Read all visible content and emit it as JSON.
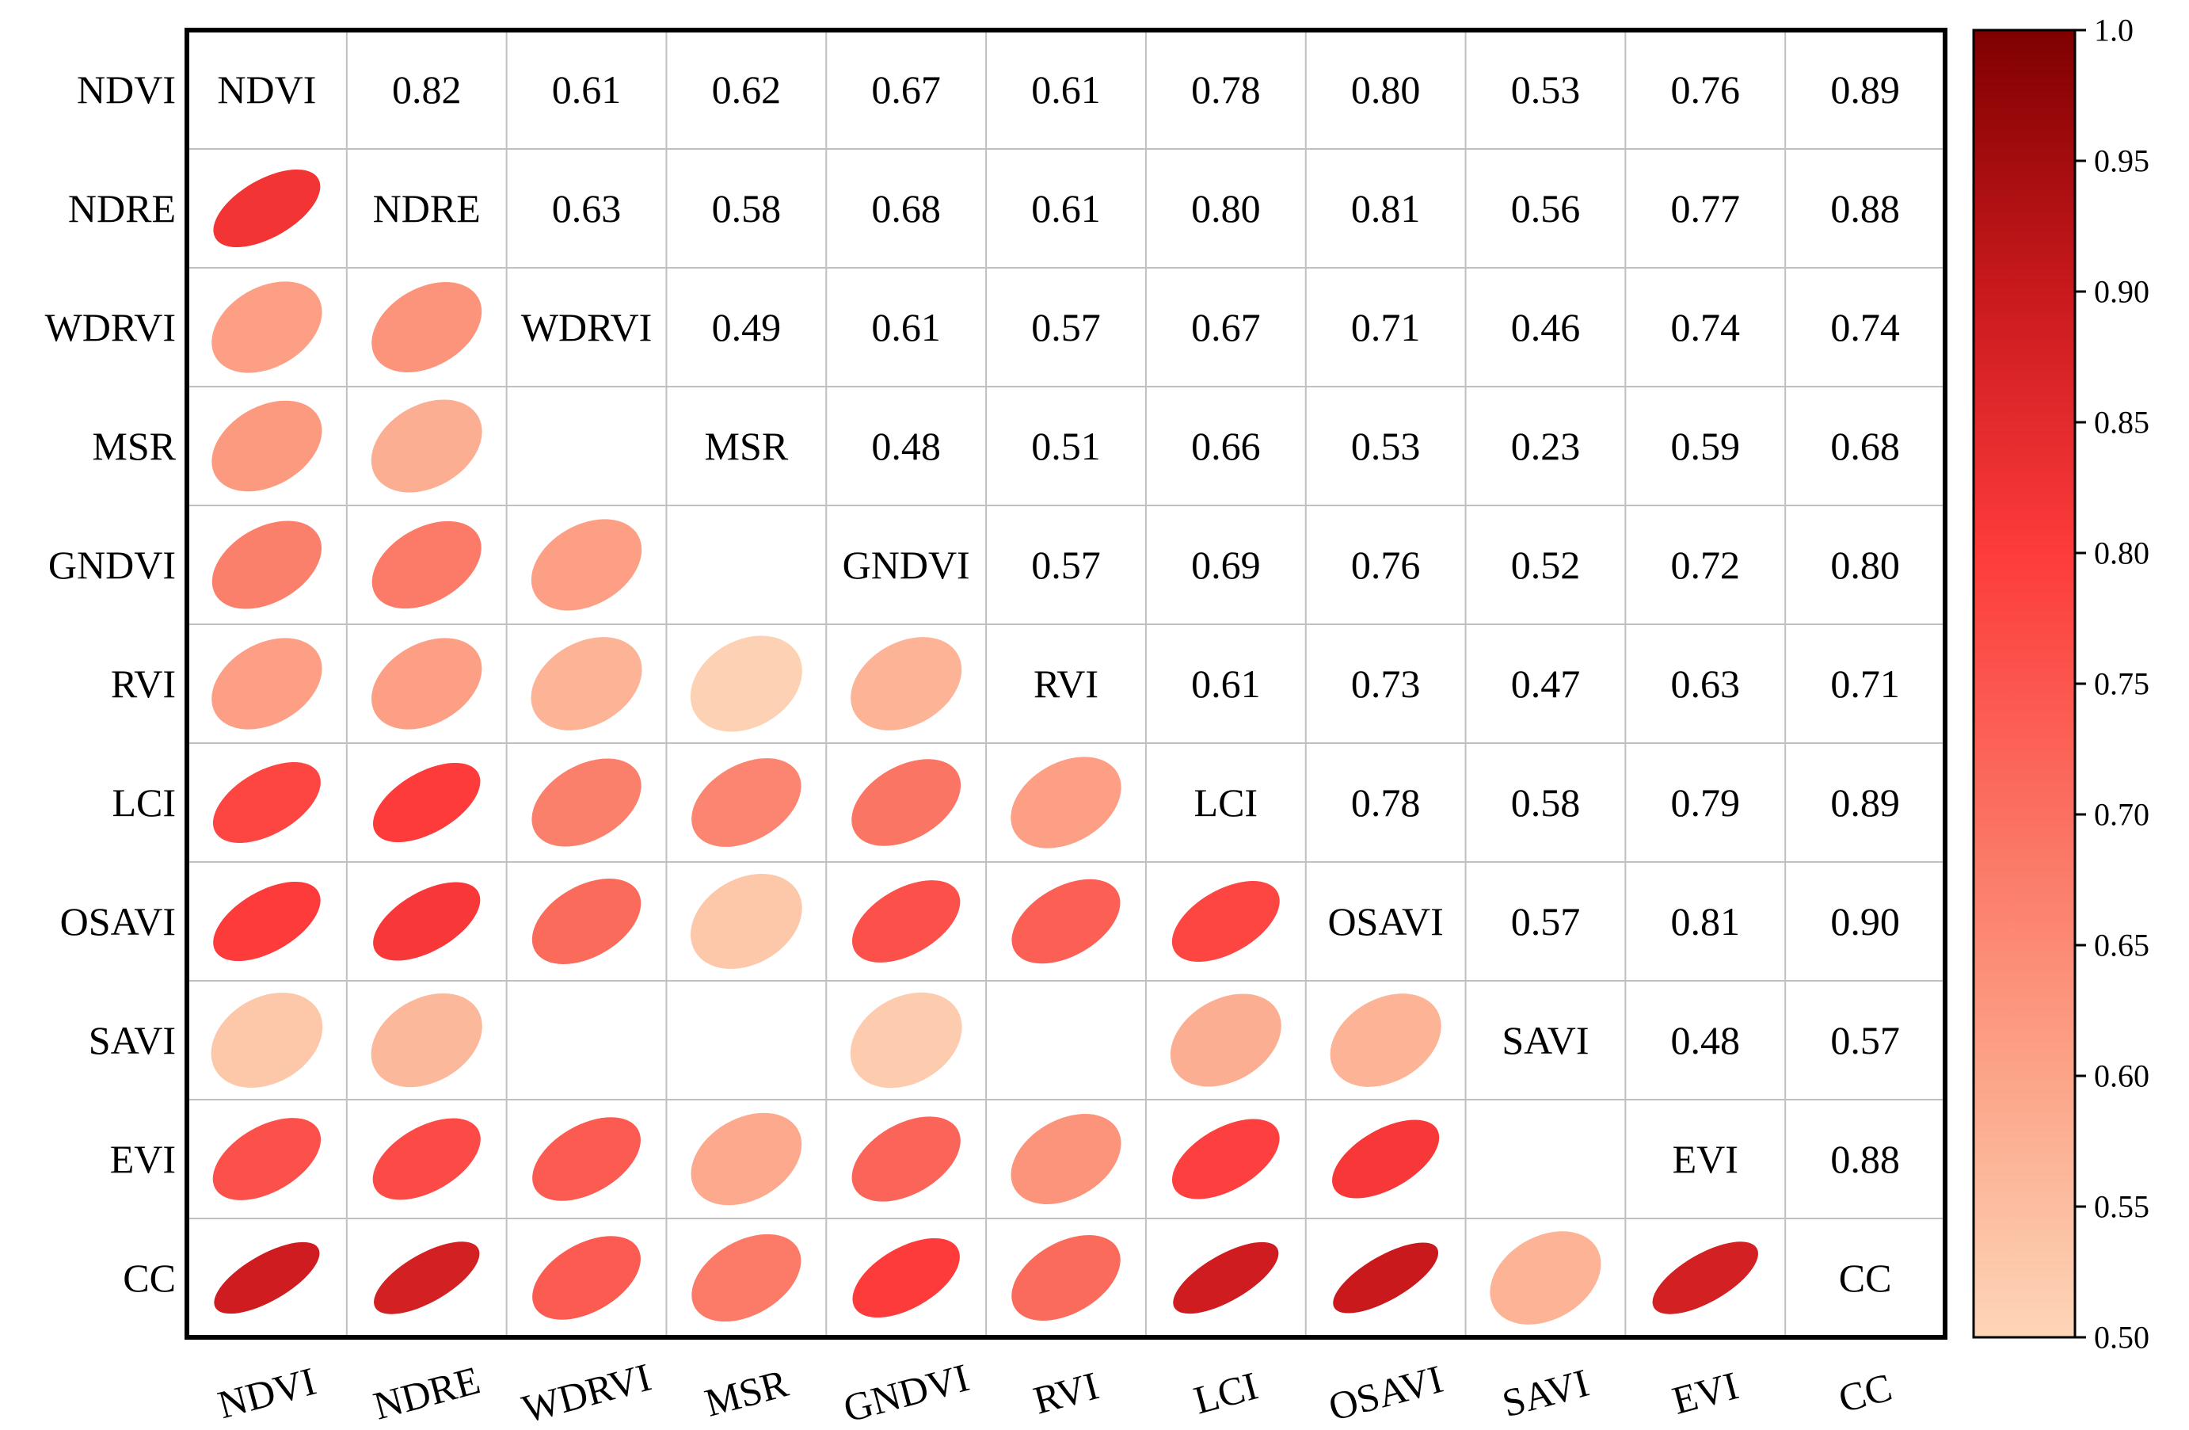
{
  "chart_data": {
    "type": "heatmap",
    "title": "",
    "variables": [
      "NDVI",
      "NDRE",
      "WDRVI",
      "MSR",
      "GNDVI",
      "RVI",
      "LCI",
      "OSAVI",
      "SAVI",
      "EVI",
      "CC"
    ],
    "correlation_matrix": [
      [
        null,
        0.82,
        0.61,
        0.62,
        0.67,
        0.61,
        0.78,
        0.8,
        0.53,
        0.76,
        0.89
      ],
      [
        0.82,
        null,
        0.63,
        0.58,
        0.68,
        0.61,
        0.8,
        0.81,
        0.56,
        0.77,
        0.88
      ],
      [
        0.61,
        0.63,
        null,
        0.49,
        0.61,
        0.57,
        0.67,
        0.71,
        0.46,
        0.74,
        0.74
      ],
      [
        0.62,
        0.58,
        0.49,
        null,
        0.48,
        0.51,
        0.66,
        0.53,
        0.23,
        0.59,
        0.68
      ],
      [
        0.67,
        0.68,
        0.61,
        0.48,
        null,
        0.57,
        0.69,
        0.76,
        0.52,
        0.72,
        0.8
      ],
      [
        0.61,
        0.61,
        0.57,
        0.51,
        0.57,
        null,
        0.61,
        0.73,
        0.47,
        0.63,
        0.71
      ],
      [
        0.78,
        0.8,
        0.67,
        0.66,
        0.69,
        0.61,
        null,
        0.78,
        0.58,
        0.79,
        0.89
      ],
      [
        0.8,
        0.81,
        0.71,
        0.53,
        0.76,
        0.73,
        0.78,
        null,
        0.57,
        0.81,
        0.9
      ],
      [
        0.53,
        0.56,
        0.46,
        0.23,
        0.52,
        0.47,
        0.58,
        0.57,
        null,
        0.48,
        0.57
      ],
      [
        0.76,
        0.77,
        0.74,
        0.59,
        0.72,
        0.63,
        0.79,
        0.81,
        0.48,
        null,
        0.88
      ],
      [
        0.89,
        0.88,
        0.74,
        0.68,
        0.8,
        0.71,
        0.89,
        0.9,
        0.57,
        0.88,
        null
      ]
    ],
    "upper_triangle": "numbers",
    "lower_triangle": "ellipses",
    "display_threshold": 0.5,
    "colorbar": {
      "min": 0.5,
      "max": 1.0,
      "ticks": [
        "1.0",
        "0.95",
        "0.90",
        "0.85",
        "0.80",
        "0.75",
        "0.70",
        "0.65",
        "0.60",
        "0.55",
        "0.50"
      ],
      "colors": [
        {
          "value": 0.5,
          "color": "#fdd6b8"
        },
        {
          "value": 0.6,
          "color": "#fca488"
        },
        {
          "value": 0.7,
          "color": "#fb7060"
        },
        {
          "value": 0.8,
          "color": "#fd3b3b"
        },
        {
          "value": 0.9,
          "color": "#c9191d"
        },
        {
          "value": 1.0,
          "color": "#7f0000"
        }
      ]
    },
    "frame_color": "#000000",
    "grid_color": "#c0c0c0"
  }
}
